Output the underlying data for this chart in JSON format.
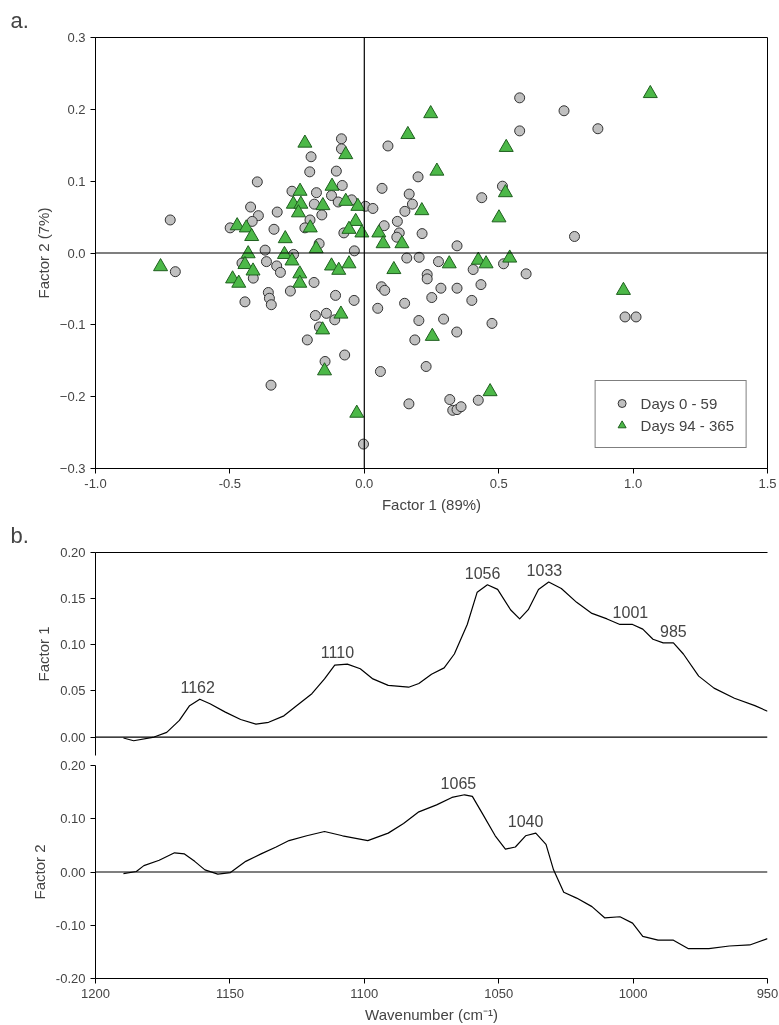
{
  "chart_data": [
    {
      "type": "scatter",
      "title": "a.",
      "xlabel": "Factor 1 (89%)",
      "ylabel": "Factor 2 (7%)",
      "xlim": [
        -1.0,
        1.5
      ],
      "ylim": [
        -0.3,
        0.3
      ],
      "xticks": [
        {
          "value": -1.0,
          "label": "-1.0"
        },
        {
          "value": -0.5,
          "label": "-0.5"
        },
        {
          "value": 0,
          "label": "0.0"
        },
        {
          "value": 0.5,
          "label": "0.5"
        },
        {
          "value": 1.0,
          "label": "1.0"
        },
        {
          "value": 1.5,
          "label": "1.5"
        }
      ],
      "yticks": [
        -0.3,
        -0.2,
        -0.1,
        {
          "value": 0,
          "label": "0.0"
        },
        0.1,
        0.2,
        0.3
      ],
      "grid": false,
      "legend": "bottom right",
      "ref_lines": [
        {
          "axis": "x",
          "value": 0,
          "color": "#000000"
        },
        {
          "axis": "y",
          "value": 0,
          "color": "#000000"
        }
      ],
      "series": [
        {
          "name": "Days 0 - 59",
          "color": "#c0c0c0",
          "marker": "circle",
          "x": [
            -0.722,
            -0.085,
            -0.085,
            -0.198,
            -0.203,
            -0.104,
            -0.398,
            -0.269,
            -0.178,
            -0.082,
            -0.122,
            -0.423,
            -0.394,
            -0.324,
            -0.186,
            -0.158,
            -0.097,
            -0.047,
            0.004,
            0.032,
            -0.499,
            -0.417,
            -0.336,
            -0.202,
            -0.221,
            -0.076,
            -0.168,
            -0.037,
            -0.369,
            -0.263,
            -0.703,
            -0.455,
            -0.413,
            -0.444,
            -0.364,
            -0.326,
            -0.312,
            -0.357,
            -0.353,
            -0.346,
            -0.275,
            -0.187,
            -0.182,
            -0.141,
            -0.11,
            -0.107,
            -0.038,
            -0.212,
            -0.073,
            -0.167,
            -0.146,
            -0.347,
            -0.003,
            0.578,
            0.743,
            0.869,
            0.578,
            0.088,
            0.2,
            0.066,
            0.167,
            0.179,
            0.151,
            0.437,
            0.514,
            0.782,
            0.123,
            0.074,
            0.13,
            0.121,
            0.215,
            0.345,
            0.158,
            0.204,
            0.276,
            0.405,
            0.518,
            0.602,
            0.234,
            0.234,
            0.064,
            0.076,
            0.285,
            0.345,
            0.434,
            0.15,
            0.251,
            0.4,
            0.05,
            0.203,
            0.295,
            0.344,
            0.475,
            0.188,
            0.06,
            0.23,
            0.166,
            0.318,
            0.329,
            0.345,
            0.36,
            0.424,
            0.97,
            1.011
          ],
          "values": [
            0.046,
            0.159,
            0.145,
            0.134,
            0.113,
            0.114,
            0.099,
            0.086,
            0.084,
            0.094,
            0.08,
            0.064,
            0.052,
            0.057,
            0.068,
            0.053,
            0.071,
            0.074,
            0.065,
            0.062,
            0.035,
            0.044,
            0.033,
            0.046,
            0.035,
            0.028,
            0.013,
            0.003,
            0.004,
            -0.002,
            -0.026,
            -0.014,
            -0.035,
            -0.068,
            -0.012,
            -0.018,
            -0.027,
            -0.055,
            -0.063,
            -0.072,
            -0.053,
            -0.041,
            -0.087,
            -0.084,
            -0.093,
            -0.059,
            -0.066,
            -0.121,
            -0.142,
            -0.103,
            -0.151,
            -0.184,
            -0.266,
            0.216,
            0.198,
            0.173,
            0.17,
            0.149,
            0.106,
            0.09,
            0.082,
            0.068,
            0.058,
            0.077,
            0.093,
            0.023,
            0.044,
            0.038,
            0.028,
            0.022,
            0.027,
            0.01,
            -0.007,
            -0.006,
            -0.012,
            -0.023,
            -0.015,
            -0.029,
            -0.03,
            -0.036,
            -0.047,
            -0.052,
            -0.049,
            -0.049,
            -0.044,
            -0.07,
            -0.062,
            -0.066,
            -0.077,
            -0.094,
            -0.092,
            -0.11,
            -0.098,
            -0.121,
            -0.165,
            -0.158,
            -0.21,
            -0.204,
            -0.219,
            -0.218,
            -0.214,
            -0.205,
            -0.089,
            -0.089
          ]
        },
        {
          "name": "Days 94 - 365",
          "color": "#4cb848",
          "marker": "triangle",
          "x": [
            -0.221,
            -0.069,
            -0.239,
            -0.12,
            -0.264,
            -0.236,
            -0.245,
            -0.154,
            -0.069,
            -0.024,
            -0.473,
            -0.439,
            -0.419,
            -0.201,
            -0.032,
            -0.057,
            -0.009,
            -0.294,
            -0.179,
            0.054,
            -0.758,
            -0.432,
            -0.444,
            -0.49,
            -0.467,
            -0.414,
            -0.297,
            -0.269,
            -0.24,
            -0.24,
            -0.122,
            -0.095,
            -0.057,
            -0.087,
            -0.155,
            -0.148,
            -0.028,
            1.064,
            0.247,
            0.162,
            0.528,
            0.27,
            0.525,
            0.214,
            0.501,
            0.07,
            0.14,
            0.11,
            0.316,
            0.424,
            0.453,
            0.541,
            0.964,
            0.253,
            0.468
          ],
          "values": [
            0.153,
            0.137,
            0.086,
            0.093,
            0.068,
            0.068,
            0.056,
            0.066,
            0.072,
            0.065,
            0.038,
            0.035,
            0.023,
            0.035,
            0.044,
            0.033,
            0.028,
            0.02,
            0.006,
            0.028,
            -0.019,
            -0.001,
            -0.016,
            -0.036,
            -0.042,
            -0.025,
            -0.002,
            -0.011,
            -0.029,
            -0.042,
            -0.018,
            -0.024,
            -0.015,
            -0.085,
            -0.107,
            -0.164,
            -0.223,
            0.222,
            0.194,
            0.165,
            0.147,
            0.114,
            0.084,
            0.059,
            0.049,
            0.013,
            0.013,
            -0.023,
            -0.015,
            -0.01,
            -0.015,
            -0.007,
            -0.052,
            -0.116,
            -0.193
          ]
        }
      ]
    },
    {
      "type": "line",
      "title": "b.",
      "ylabel": "Factor 1",
      "xlim": [
        1200,
        950
      ],
      "ylim": [
        -0.02,
        0.2
      ],
      "yticks": [
        {
          "value": 0,
          "label": "0.00"
        },
        {
          "value": 0.05,
          "label": "0.05"
        },
        {
          "value": 0.1,
          "label": "0.10"
        },
        {
          "value": 0.15,
          "label": "0.15"
        },
        {
          "value": 0.2,
          "label": "0.20"
        }
      ],
      "tick_labels": "y",
      "grid": false,
      "legend": false,
      "ref_lines": [
        {
          "axis": "y",
          "value": 0,
          "color": "#000000"
        }
      ],
      "annotations": [
        {
          "text": "1162",
          "x": 1162,
          "y": 0.041
        },
        {
          "text": "1110",
          "x": 1110,
          "y": 0.079
        },
        {
          "text": "1056",
          "x": 1056,
          "y": 0.165
        },
        {
          "text": "1033",
          "x": 1033,
          "y": 0.168
        },
        {
          "text": "1001",
          "x": 1001,
          "y": 0.122
        },
        {
          "text": "985",
          "x": 985,
          "y": 0.102
        }
      ],
      "series": [
        {
          "color": "#000000",
          "x": [
            1189.6,
            1185.8,
            1178.2,
            1173.5,
            1168.8,
            1165.0,
            1161.2,
            1157.4,
            1151.7,
            1146.0,
            1140.3,
            1135.6,
            1129.9,
            1125.2,
            1119.5,
            1114.8,
            1111.0,
            1106.3,
            1101.5,
            1096.8,
            1091.1,
            1083.5,
            1079.7,
            1075.0,
            1070.3,
            1066.5,
            1061.7,
            1058.0,
            1054.2,
            1050.4,
            1045.6,
            1042.2,
            1039.0,
            1035.2,
            1031.4,
            1026.7,
            1021.0,
            1015.3,
            1009.7,
            1004.9,
            1000.2,
            996.4,
            992.6,
            988.8,
            985.0,
            981.3,
            975.6,
            969.9,
            962.3,
            954.7,
            950.0
          ],
          "values": [
            -0.001,
            -0.004,
            0.0,
            0.005,
            0.018,
            0.034,
            0.041,
            0.036,
            0.027,
            0.019,
            0.014,
            0.016,
            0.023,
            0.034,
            0.047,
            0.063,
            0.078,
            0.079,
            0.074,
            0.063,
            0.056,
            0.054,
            0.058,
            0.068,
            0.075,
            0.09,
            0.122,
            0.157,
            0.165,
            0.16,
            0.138,
            0.128,
            0.138,
            0.16,
            0.168,
            0.161,
            0.146,
            0.134,
            0.128,
            0.122,
            0.122,
            0.117,
            0.106,
            0.102,
            0.102,
            0.09,
            0.066,
            0.053,
            0.042,
            0.034,
            0.028
          ]
        }
      ]
    },
    {
      "type": "line",
      "ylabel": "Factor 2",
      "xlabel": "Wavenumber (cm⁻¹)",
      "xlim": [
        1200,
        950
      ],
      "ylim": [
        -0.2,
        0.2
      ],
      "xticks": [
        1200,
        1150,
        1100,
        1050,
        1000,
        950
      ],
      "yticks": [
        {
          "value": -0.2,
          "label": "-0.20"
        },
        {
          "value": -0.1,
          "label": "-0.10"
        },
        {
          "value": 0,
          "label": "0.00"
        },
        {
          "value": 0.1,
          "label": "0.10"
        },
        {
          "value": 0.2,
          "label": "0.20"
        }
      ],
      "grid": false,
      "legend": false,
      "ref_lines": [
        {
          "axis": "y",
          "value": 0,
          "color": "#000000"
        }
      ],
      "annotations": [
        {
          "text": "1065",
          "x": 1065,
          "y": 0.145
        },
        {
          "text": "1040",
          "x": 1040,
          "y": 0.073
        }
      ],
      "series": [
        {
          "color": "#000000",
          "x": [
            1189.6,
            1184.8,
            1182.0,
            1176.3,
            1170.6,
            1166.9,
            1163.1,
            1159.3,
            1154.5,
            1149.8,
            1144.1,
            1138.4,
            1132.8,
            1128.0,
            1121.4,
            1114.8,
            1108.1,
            1098.7,
            1091.1,
            1085.4,
            1079.7,
            1073.1,
            1067.4,
            1062.7,
            1059.8,
            1056.1,
            1051.3,
            1047.5,
            1043.8,
            1040.0,
            1036.2,
            1032.4,
            1029.6,
            1025.8,
            1021.0,
            1015.3,
            1010.6,
            1004.9,
            1000.2,
            996.4,
            990.7,
            985.0,
            979.4,
            971.8,
            964.2,
            956.6,
            950.0
          ],
          "values": [
            -0.003,
            0.001,
            0.012,
            0.022,
            0.036,
            0.034,
            0.02,
            0.004,
            -0.004,
            -0.001,
            0.02,
            0.034,
            0.047,
            0.059,
            0.068,
            0.076,
            0.068,
            0.059,
            0.073,
            0.091,
            0.113,
            0.126,
            0.14,
            0.145,
            0.142,
            0.11,
            0.068,
            0.043,
            0.047,
            0.068,
            0.073,
            0.052,
            0.004,
            -0.038,
            -0.049,
            -0.065,
            -0.086,
            -0.084,
            -0.096,
            -0.121,
            -0.128,
            -0.128,
            -0.144,
            -0.144,
            -0.139,
            -0.137,
            -0.125
          ]
        }
      ]
    }
  ]
}
